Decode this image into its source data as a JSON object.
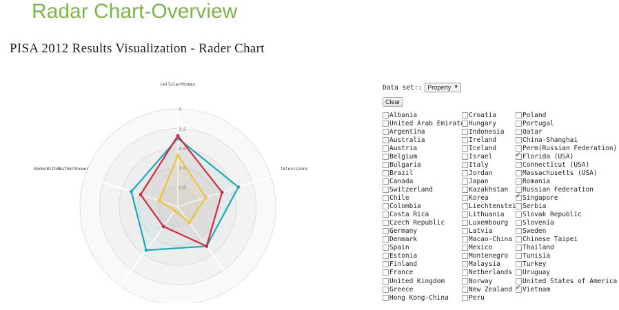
{
  "slide_title": "Radar Chart-Overview",
  "page_title": "PISA 2012 Results Visualization - Rader Chart",
  "controls": {
    "dataset_label": "Data set::",
    "dataset_selected": "Property",
    "clear_label": "Clear"
  },
  "countries": [
    {
      "name": "Albania",
      "checked": false
    },
    {
      "name": "United Arab Emirates",
      "checked": false
    },
    {
      "name": "Argentina",
      "checked": false
    },
    {
      "name": "Australia",
      "checked": false
    },
    {
      "name": "Austria",
      "checked": false
    },
    {
      "name": "Belgium",
      "checked": false
    },
    {
      "name": "Bulgaria",
      "checked": false
    },
    {
      "name": "Brazil",
      "checked": false
    },
    {
      "name": "Canada",
      "checked": false
    },
    {
      "name": "Switzerland",
      "checked": false
    },
    {
      "name": "Chile",
      "checked": false
    },
    {
      "name": "Colombia",
      "checked": false
    },
    {
      "name": "Costa Rica",
      "checked": false
    },
    {
      "name": "Czech Republic",
      "checked": false
    },
    {
      "name": "Germany",
      "checked": false
    },
    {
      "name": "Denmark",
      "checked": false
    },
    {
      "name": "Spain",
      "checked": false
    },
    {
      "name": "Estonia",
      "checked": false
    },
    {
      "name": "Finland",
      "checked": false
    },
    {
      "name": "France",
      "checked": false
    },
    {
      "name": "United Kingdom",
      "checked": false
    },
    {
      "name": "Greece",
      "checked": false
    },
    {
      "name": "Hong Kong-China",
      "checked": false
    },
    {
      "name": "Croatia",
      "checked": false
    },
    {
      "name": "Hungary",
      "checked": false
    },
    {
      "name": "Indonesia",
      "checked": false
    },
    {
      "name": "Ireland",
      "checked": false
    },
    {
      "name": "Iceland",
      "checked": false
    },
    {
      "name": "Israel",
      "checked": false
    },
    {
      "name": "Italy",
      "checked": false
    },
    {
      "name": "Jordan",
      "checked": false
    },
    {
      "name": "Japan",
      "checked": false
    },
    {
      "name": "Kazakhstan",
      "checked": false
    },
    {
      "name": "Korea",
      "checked": false
    },
    {
      "name": "Liechtenstein",
      "checked": false
    },
    {
      "name": "Lithuania",
      "checked": false
    },
    {
      "name": "Luxembourg",
      "checked": false
    },
    {
      "name": "Latvia",
      "checked": false
    },
    {
      "name": "Macao-China",
      "checked": false
    },
    {
      "name": "Mexico",
      "checked": false
    },
    {
      "name": "Montenegro",
      "checked": false
    },
    {
      "name": "Malaysia",
      "checked": false
    },
    {
      "name": "Netherlands",
      "checked": false
    },
    {
      "name": "Norway",
      "checked": false
    },
    {
      "name": "New Zealand",
      "checked": false
    },
    {
      "name": "Peru",
      "checked": false
    },
    {
      "name": "Poland",
      "checked": false
    },
    {
      "name": "Portugal",
      "checked": false
    },
    {
      "name": "Qatar",
      "checked": false
    },
    {
      "name": "China-Shanghai",
      "checked": false
    },
    {
      "name": "Perm(Russian Federation)",
      "checked": false
    },
    {
      "name": "Florida (USA)",
      "checked": true
    },
    {
      "name": "Connecticut (USA)",
      "checked": false
    },
    {
      "name": "Massachusetts (USA)",
      "checked": false
    },
    {
      "name": "Romania",
      "checked": false
    },
    {
      "name": "Russian Federation",
      "checked": false
    },
    {
      "name": "Singapore",
      "checked": true
    },
    {
      "name": "Serbia",
      "checked": false
    },
    {
      "name": "Slovak Republic",
      "checked": false
    },
    {
      "name": "Slovenia",
      "checked": false
    },
    {
      "name": "Sweden",
      "checked": false
    },
    {
      "name": "Chinese Taipei",
      "checked": false
    },
    {
      "name": "Thailand",
      "checked": false
    },
    {
      "name": "Tunisia",
      "checked": false
    },
    {
      "name": "Turkey",
      "checked": false
    },
    {
      "name": "Uruguay",
      "checked": false
    },
    {
      "name": "United States of America",
      "checked": false
    },
    {
      "name": "Vietnam",
      "checked": true
    }
  ],
  "chart_data": {
    "type": "radar",
    "axes": [
      "CellularPhones",
      "Televisions",
      "",
      "",
      "RoomsWithABathOrShower"
    ],
    "ticks": [
      "0.8",
      "1.6",
      "2.4",
      "3.2",
      "4"
    ],
    "max": 4,
    "grid": true,
    "series": [
      {
        "color": "#1ba8b8",
        "values": [
          2.8,
          2.6,
          2.0,
          2.2,
          2.0
        ]
      },
      {
        "color": "#d9273a",
        "values": [
          2.9,
          1.9,
          2.0,
          1.0,
          1.6
        ]
      },
      {
        "color": "#f0c330",
        "values": [
          2.1,
          1.2,
          0.8,
          0.2,
          0.8
        ]
      }
    ]
  }
}
